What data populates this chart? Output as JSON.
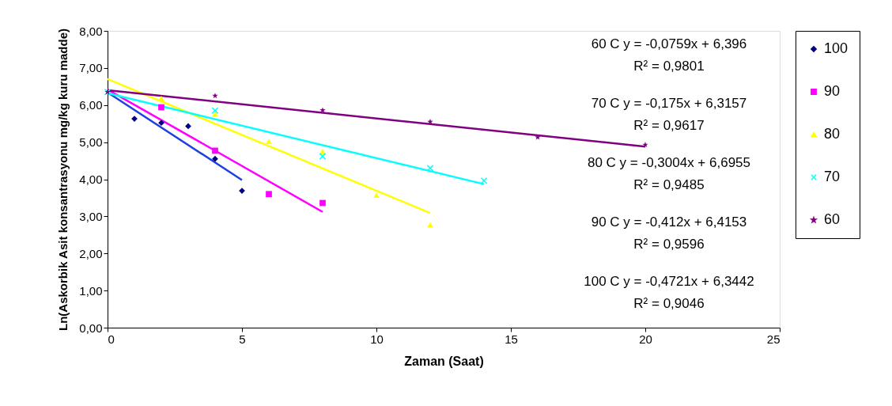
{
  "chart_data": {
    "type": "scatter",
    "xlabel": "Zaman (Saat)",
    "ylabel": "Ln(Askorbik Asit konsantrasyonu mg/kg kuru madde)",
    "xlim": [
      0,
      25
    ],
    "xticks": [
      0,
      5,
      10,
      15,
      20,
      25
    ],
    "ylim": [
      0,
      8
    ],
    "yticks": [
      {
        "value": 0,
        "label": "0,00"
      },
      {
        "value": 1,
        "label": "1,00"
      },
      {
        "value": 2,
        "label": "2,00"
      },
      {
        "value": 3,
        "label": "3,00"
      },
      {
        "value": 4,
        "label": "4,00"
      },
      {
        "value": 5,
        "label": "5,00"
      },
      {
        "value": 6,
        "label": "6,00"
      },
      {
        "value": 7,
        "label": "7,00"
      },
      {
        "value": 8,
        "label": "8,00"
      }
    ],
    "grid": false,
    "legend": "right",
    "series": [
      {
        "name": "100",
        "marker": "diamond",
        "color": "#000080",
        "x": [
          1,
          2,
          3,
          4,
          5
        ],
        "values": [
          5.63,
          5.52,
          5.43,
          4.55,
          3.69
        ]
      },
      {
        "name": "90",
        "marker": "square",
        "color": "#ff00ff",
        "x": [
          2,
          4,
          6,
          8
        ],
        "values": [
          5.94,
          4.77,
          3.6,
          3.36
        ]
      },
      {
        "name": "80",
        "marker": "triangle",
        "color": "#ffff00",
        "x": [
          2,
          4,
          6,
          8,
          10,
          12
        ],
        "values": [
          6.18,
          5.76,
          5.02,
          4.75,
          3.57,
          2.77
        ]
      },
      {
        "name": "70",
        "marker": "cross",
        "color": "#00ffff",
        "x": [
          0,
          4,
          8,
          12,
          14
        ],
        "values": [
          6.35,
          5.85,
          4.62,
          4.3,
          3.96
        ]
      },
      {
        "name": "60",
        "marker": "star",
        "color": "#800080",
        "x": [
          0,
          4,
          8,
          12,
          16,
          20
        ],
        "values": [
          6.35,
          6.25,
          5.86,
          5.55,
          5.13,
          4.93
        ]
      },
      {
        "type": "line",
        "color": "#1f3fe0",
        "x": [
          0,
          5
        ],
        "values": [
          6.34,
          3.98
        ]
      },
      {
        "type": "line",
        "color": "#ff00ff",
        "x": [
          0,
          8
        ],
        "values": [
          6.42,
          3.12
        ]
      },
      {
        "type": "line",
        "color": "#ffff00",
        "x": [
          0,
          12
        ],
        "values": [
          6.7,
          3.09
        ]
      },
      {
        "type": "line",
        "color": "#00ffff",
        "x": [
          0,
          14
        ],
        "values": [
          6.32,
          3.87
        ]
      },
      {
        "type": "line",
        "color": "#800080",
        "x": [
          0,
          20
        ],
        "values": [
          6.4,
          4.88
        ]
      }
    ],
    "annotations": [
      "60 C y = -0,0759x + 6,396",
      "R² = 0,9801",
      "70 C y = -0,175x + 6,3157",
      "R² = 0,9617",
      "80 C y = -0,3004x + 6,6955",
      "R² = 0,9485",
      "90 C y = -0,412x + 6,4153",
      "R² = 0,9596",
      "100 C y = -0,4721x + 6,3442",
      "R² = 0,9046"
    ]
  }
}
